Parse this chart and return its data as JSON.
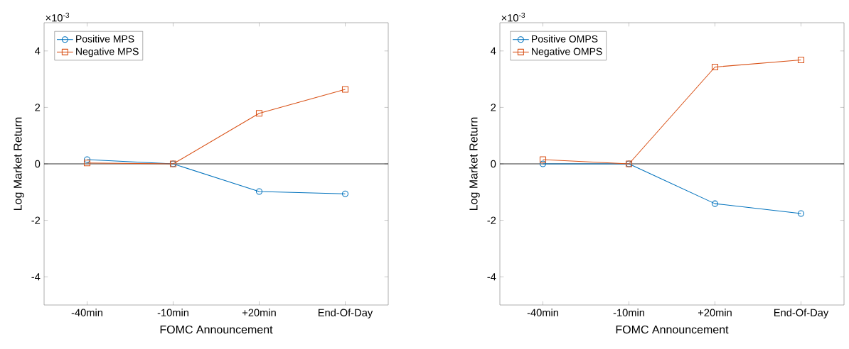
{
  "chart_data": [
    {
      "type": "line",
      "xlabel": "FOMC Announcement",
      "ylabel": "Log Market Return",
      "categories": [
        "-40min",
        "-10min",
        "+20min",
        "End-Of-Day"
      ],
      "series": [
        {
          "name": "Positive MPS",
          "color": "#0072bd",
          "marker": "circle",
          "values": [
            0.15,
            0.0,
            -0.98,
            -1.06
          ]
        },
        {
          "name": "Negative MPS",
          "color": "#d95319",
          "marker": "square",
          "values": [
            0.03,
            0.0,
            1.79,
            2.64
          ]
        }
      ],
      "ylim": [
        -5,
        5
      ],
      "yticks": [
        -4,
        -2,
        0,
        2,
        4
      ],
      "ref_lines": [
        {
          "axis": "y",
          "value": 0,
          "color": "#000000"
        }
      ],
      "annotations": [
        "×10$^{-3}$"
      ],
      "legend": "top left",
      "grid": false,
      "line_style": "solid"
    },
    {
      "type": "line",
      "xlabel": "FOMC Announcement",
      "ylabel": "Log Market Return",
      "categories": [
        "-40min",
        "-10min",
        "+20min",
        "End-Of-Day"
      ],
      "series": [
        {
          "name": "Positive OMPS",
          "color": "#0072bd",
          "marker": "circle",
          "values": [
            0.0,
            0.0,
            -1.41,
            -1.76
          ]
        },
        {
          "name": "Negative OMPS",
          "color": "#d95319",
          "marker": "square",
          "values": [
            0.15,
            0.0,
            3.43,
            3.68
          ]
        }
      ],
      "ylim": [
        -5,
        5
      ],
      "yticks": [
        -4,
        -2,
        0,
        2,
        4
      ],
      "ref_lines": [
        {
          "axis": "y",
          "value": 0,
          "color": "#000000"
        }
      ],
      "annotations": [
        "×10$^{-3}$"
      ],
      "legend": "top left",
      "grid": false,
      "line_style": "solid"
    }
  ]
}
